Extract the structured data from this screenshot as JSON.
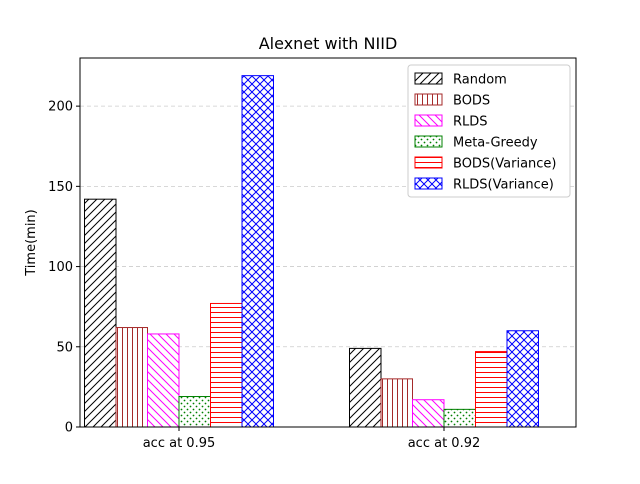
{
  "chart_data": {
    "type": "bar",
    "title": "Alexnet with NIID",
    "xlabel": "",
    "ylabel": "Time(min)",
    "categories": [
      "acc at 0.95",
      "acc at 0.92"
    ],
    "ylim": [
      0,
      230
    ],
    "yticks": [
      0,
      50,
      100,
      150,
      200
    ],
    "grid": "y-dashed",
    "legend_position": "top-right",
    "series": [
      {
        "name": "Random",
        "values": [
          142,
          49
        ],
        "color": "#000000",
        "hatch": "diagonal-forward"
      },
      {
        "name": "BODS",
        "values": [
          62,
          30
        ],
        "color": "#a52a2a",
        "hatch": "vertical"
      },
      {
        "name": "RLDS",
        "values": [
          58,
          17
        ],
        "color": "#ff00ff",
        "hatch": "diagonal-back"
      },
      {
        "name": "Meta-Greedy",
        "values": [
          19,
          11
        ],
        "color": "#008000",
        "hatch": "dots"
      },
      {
        "name": "BODS(Variance)",
        "values": [
          77,
          47
        ],
        "color": "#ff0000",
        "hatch": "horizontal"
      },
      {
        "name": "RLDS(Variance)",
        "values": [
          219,
          60
        ],
        "color": "#0000ff",
        "hatch": "crosshatch"
      }
    ]
  }
}
